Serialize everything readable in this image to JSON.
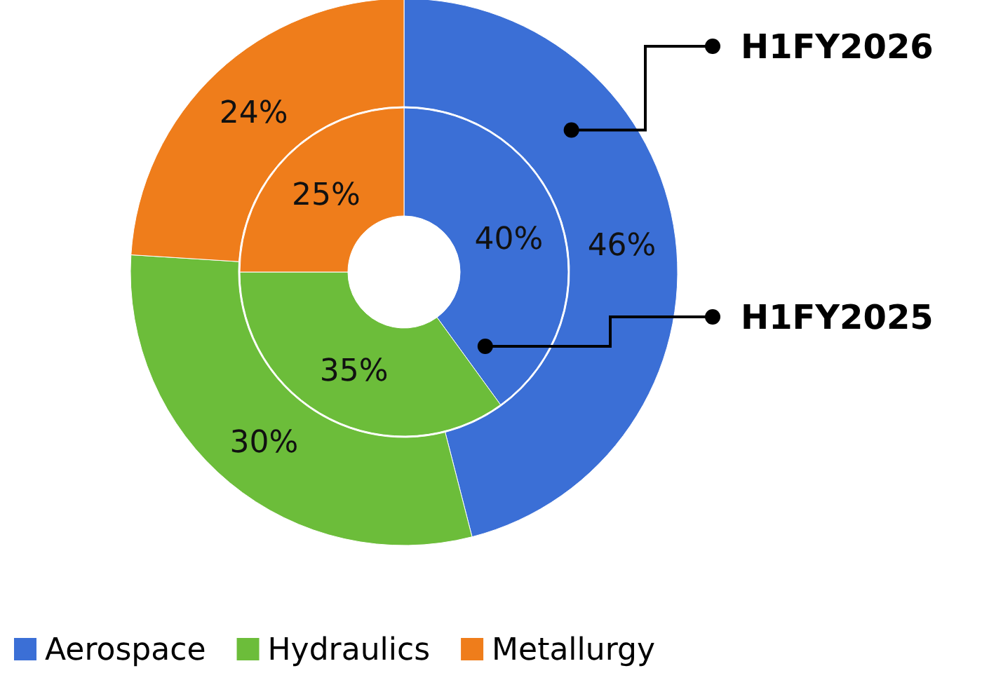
{
  "chart_data": {
    "type": "donut",
    "categories": [
      "Aerospace",
      "Hydraulics",
      "Metallurgy"
    ],
    "colors": [
      "#3b6fd6",
      "#6cbd3a",
      "#ef7d1b"
    ],
    "series": [
      {
        "name": "H1FY2026",
        "values": [
          46,
          30,
          24
        ],
        "value_labels": [
          "46%",
          "30%",
          "24%"
        ]
      },
      {
        "name": "H1FY2025",
        "values": [
          40,
          35,
          25
        ],
        "value_labels": [
          "40%",
          "35%",
          "25%"
        ]
      }
    ],
    "legend": "bottom"
  }
}
